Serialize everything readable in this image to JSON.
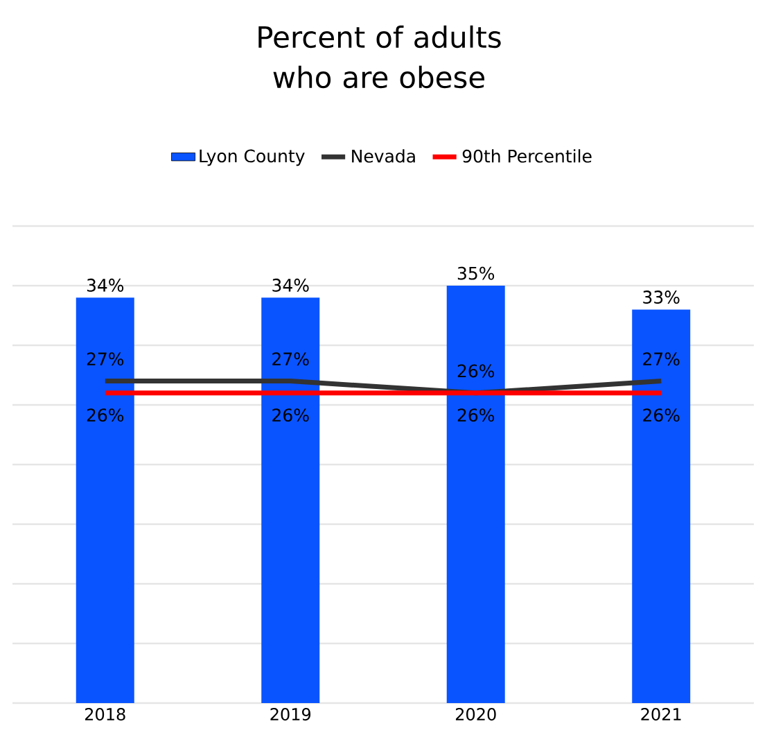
{
  "chart_data": {
    "type": "bar",
    "title": "Percent of adults who are obese",
    "categories": [
      "2018",
      "2019",
      "2020",
      "2021"
    ],
    "series": [
      {
        "name": "Lyon County",
        "color": "#0a54ff",
        "values": [
          34,
          34,
          35,
          33
        ],
        "value_labels": [
          "34%",
          "34%",
          "35%",
          "33%"
        ]
      },
      {
        "name": "Nevada",
        "type": "line",
        "color": "#333333",
        "values": [
          27,
          27,
          26,
          27
        ],
        "value_labels": [
          "27%",
          "27%",
          "26%",
          "27%"
        ]
      },
      {
        "name": "90th Percentile",
        "type": "line",
        "color": "#ff0000",
        "values": [
          26,
          26,
          26,
          26
        ],
        "value_labels": [
          "26%",
          "26%",
          "26%",
          "26%"
        ]
      }
    ],
    "ylim": [
      0,
      40
    ],
    "yticks": [
      {
        "value": 0,
        "label": null
      },
      {
        "value": 5,
        "label": null
      },
      {
        "value": 10,
        "label": null
      },
      {
        "value": 15,
        "label": null
      },
      {
        "value": 20,
        "label": null
      },
      {
        "value": 25,
        "label": null
      },
      {
        "value": 30,
        "label": null
      },
      {
        "value": 35,
        "label": null
      },
      {
        "value": 40,
        "label": null
      }
    ],
    "tick_labels": "x",
    "grid": "y",
    "legend": "top",
    "marker": "none",
    "line_style": "solid"
  }
}
